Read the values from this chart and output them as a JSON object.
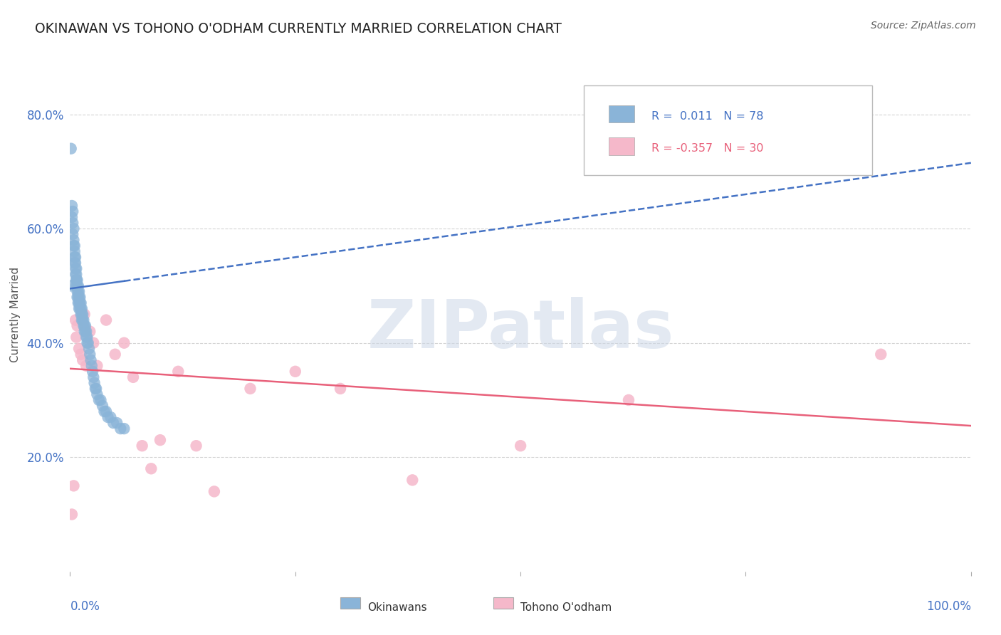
{
  "title": "OKINAWAN VS TOHONO O'ODHAM CURRENTLY MARRIED CORRELATION CHART",
  "source": "Source: ZipAtlas.com",
  "ylabel": "Currently Married",
  "legend_label_blue": "Okinawans",
  "legend_label_pink": "Tohono O'odham",
  "xlim": [
    0.0,
    1.0
  ],
  "ylim": [
    0.0,
    0.9
  ],
  "yticks": [
    0.2,
    0.4,
    0.6,
    0.8
  ],
  "ytick_labels": [
    "20.0%",
    "40.0%",
    "60.0%",
    "80.0%"
  ],
  "blue_color": "#8ab4d8",
  "pink_color": "#f5b8ca",
  "blue_line_color": "#4472c4",
  "pink_line_color": "#e8607a",
  "axis_label_color": "#4472c4",
  "grid_color": "#d0d0d0",
  "background_color": "#ffffff",
  "blue_x": [
    0.001,
    0.002,
    0.002,
    0.003,
    0.003,
    0.003,
    0.004,
    0.004,
    0.004,
    0.005,
    0.005,
    0.005,
    0.005,
    0.006,
    0.006,
    0.006,
    0.006,
    0.007,
    0.007,
    0.007,
    0.007,
    0.007,
    0.008,
    0.008,
    0.008,
    0.008,
    0.009,
    0.009,
    0.009,
    0.009,
    0.01,
    0.01,
    0.01,
    0.01,
    0.011,
    0.011,
    0.011,
    0.012,
    0.012,
    0.012,
    0.013,
    0.013,
    0.013,
    0.014,
    0.014,
    0.015,
    0.015,
    0.016,
    0.016,
    0.017,
    0.017,
    0.018,
    0.018,
    0.019,
    0.019,
    0.02,
    0.021,
    0.022,
    0.023,
    0.024,
    0.025,
    0.026,
    0.027,
    0.028,
    0.029,
    0.03,
    0.032,
    0.034,
    0.036,
    0.038,
    0.04,
    0.042,
    0.045,
    0.048,
    0.052,
    0.056,
    0.06,
    0.001
  ],
  "blue_y": [
    0.74,
    0.64,
    0.62,
    0.63,
    0.61,
    0.59,
    0.6,
    0.58,
    0.57,
    0.57,
    0.56,
    0.55,
    0.54,
    0.55,
    0.54,
    0.53,
    0.52,
    0.53,
    0.52,
    0.51,
    0.51,
    0.5,
    0.51,
    0.5,
    0.49,
    0.48,
    0.5,
    0.49,
    0.48,
    0.47,
    0.49,
    0.48,
    0.47,
    0.46,
    0.48,
    0.47,
    0.46,
    0.47,
    0.46,
    0.45,
    0.46,
    0.45,
    0.44,
    0.45,
    0.44,
    0.44,
    0.43,
    0.43,
    0.42,
    0.43,
    0.42,
    0.42,
    0.41,
    0.41,
    0.4,
    0.4,
    0.39,
    0.38,
    0.37,
    0.36,
    0.35,
    0.34,
    0.33,
    0.32,
    0.32,
    0.31,
    0.3,
    0.3,
    0.29,
    0.28,
    0.28,
    0.27,
    0.27,
    0.26,
    0.26,
    0.25,
    0.25,
    0.5
  ],
  "pink_x": [
    0.002,
    0.004,
    0.006,
    0.007,
    0.008,
    0.01,
    0.012,
    0.014,
    0.016,
    0.018,
    0.022,
    0.026,
    0.03,
    0.04,
    0.05,
    0.06,
    0.07,
    0.08,
    0.09,
    0.1,
    0.12,
    0.14,
    0.16,
    0.2,
    0.25,
    0.3,
    0.38,
    0.5,
    0.62,
    0.9
  ],
  "pink_y": [
    0.1,
    0.15,
    0.44,
    0.41,
    0.43,
    0.39,
    0.38,
    0.37,
    0.45,
    0.36,
    0.42,
    0.4,
    0.36,
    0.44,
    0.38,
    0.4,
    0.34,
    0.22,
    0.18,
    0.23,
    0.35,
    0.22,
    0.14,
    0.32,
    0.35,
    0.32,
    0.16,
    0.22,
    0.3,
    0.38
  ],
  "blue_trend_x": [
    0.0,
    1.0
  ],
  "blue_trend_y_start": 0.495,
  "blue_trend_y_end": 0.715,
  "pink_trend_x": [
    0.0,
    1.0
  ],
  "pink_trend_y_start": 0.355,
  "pink_trend_y_end": 0.255
}
